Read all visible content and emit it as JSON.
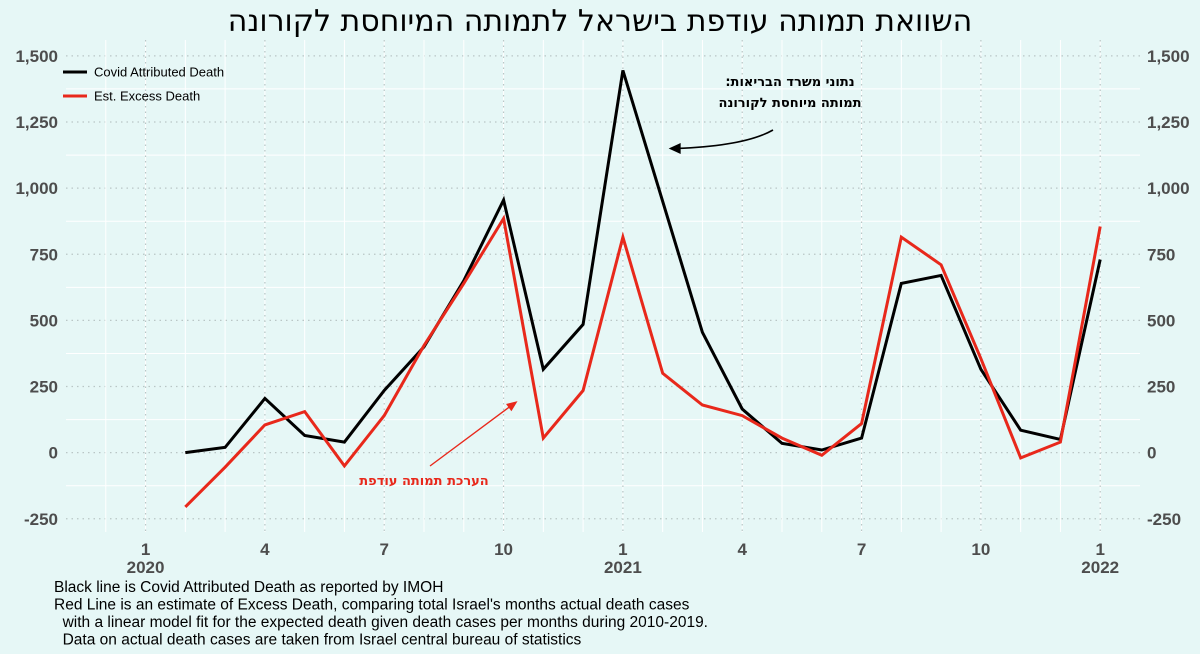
{
  "chart_data": {
    "type": "line",
    "title": "השוואת תמותה עודפת בישראל לתמותה המיוחסת לקורונה",
    "ylim": [
      -300,
      1560
    ],
    "y_ticks": [
      -250,
      0,
      250,
      500,
      750,
      1000,
      1250,
      1500
    ],
    "y_tick_labels": [
      "-250",
      "0",
      "250",
      "500",
      "750",
      "1,000",
      "1,250",
      "1,500"
    ],
    "x_range": [
      "2019-11",
      "2022-02"
    ],
    "x_ticks": [
      {
        "date": "2020-01",
        "label": "1",
        "year": "2020"
      },
      {
        "date": "2020-04",
        "label": "4",
        "year": ""
      },
      {
        "date": "2020-07",
        "label": "7",
        "year": ""
      },
      {
        "date": "2020-10",
        "label": "10",
        "year": ""
      },
      {
        "date": "2021-01",
        "label": "1",
        "year": "2021"
      },
      {
        "date": "2021-04",
        "label": "4",
        "year": ""
      },
      {
        "date": "2021-07",
        "label": "7",
        "year": ""
      },
      {
        "date": "2021-10",
        "label": "10",
        "year": ""
      },
      {
        "date": "2022-01",
        "label": "1",
        "year": "2022"
      }
    ],
    "x": [
      "2020-02",
      "2020-03",
      "2020-04",
      "2020-05",
      "2020-06",
      "2020-07",
      "2020-08",
      "2020-09",
      "2020-10",
      "2020-11",
      "2020-12",
      "2021-01",
      "2021-02",
      "2021-03",
      "2021-04",
      "2021-05",
      "2021-06",
      "2021-07",
      "2021-08",
      "2021-09",
      "2021-10",
      "2021-11",
      "2021-12",
      "2022-01"
    ],
    "series": [
      {
        "name": "Covid Attributed Death",
        "color": "#000000",
        "values": [
          0,
          20,
          205,
          65,
          40,
          235,
          400,
          650,
          955,
          315,
          485,
          1445,
          950,
          455,
          165,
          35,
          10,
          55,
          640,
          670,
          315,
          85,
          50,
          730
        ]
      },
      {
        "name": "Est. Excess Death",
        "color": "#e8281b",
        "values": [
          -205,
          -55,
          105,
          155,
          -50,
          140,
          405,
          640,
          885,
          55,
          235,
          815,
          300,
          180,
          140,
          55,
          -10,
          110,
          815,
          710,
          355,
          -20,
          40,
          855
        ]
      }
    ],
    "legend_position": "top-left",
    "grid": true,
    "annotations": [
      {
        "text_lines": [
          "נתוני משרד הבריאות:",
          "תמותה מיוחסת לקורונה"
        ],
        "color": "#000000",
        "points_to": {
          "date": "2021-02",
          "value": 1150
        }
      },
      {
        "text_lines": [
          "הערכת תמותה עודפת"
        ],
        "color": "#e8281b",
        "points_to": {
          "date": "2020-10",
          "value": 195
        }
      }
    ]
  },
  "caption": [
    "Black line is Covid Attributed Death as reported by IMOH",
    "Red Line is an estimate of Excess Death, comparing total Israel's months actual death cases",
    "  with a linear model fit for the expected death given death cases per months during 2010-2019.",
    "  Data on actual death cases are taken from Israel central bureau of statistics"
  ]
}
